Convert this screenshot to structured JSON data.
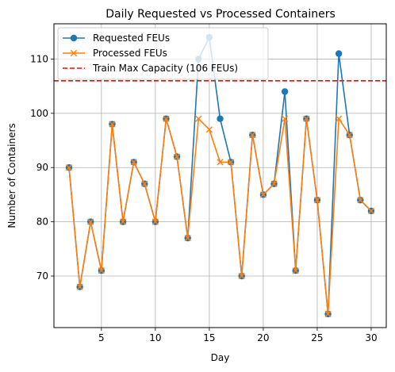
{
  "chart_data": {
    "type": "line",
    "title": "Daily Requested vs Processed Containers",
    "xlabel": "Day",
    "ylabel": "Number of Containers",
    "xlim": [
      0.6,
      31.4
    ],
    "ylim": [
      60.5,
      116.5
    ],
    "xticks": [
      5,
      10,
      15,
      20,
      25,
      30
    ],
    "yticks": [
      70,
      80,
      90,
      100,
      110
    ],
    "grid": true,
    "legend_position": "top-left",
    "x": [
      2,
      3,
      4,
      5,
      6,
      7,
      8,
      9,
      10,
      11,
      12,
      13,
      14,
      15,
      16,
      17,
      18,
      19,
      20,
      21,
      22,
      23,
      24,
      25,
      26,
      27,
      28,
      29,
      30
    ],
    "series": [
      {
        "name": "Requested FEUs",
        "color": "#1f77b4",
        "marker": "circle",
        "values": [
          90,
          68,
          80,
          71,
          98,
          80,
          91,
          87,
          80,
          99,
          92,
          77,
          110,
          114,
          99,
          91,
          70,
          96,
          85,
          87,
          104,
          71,
          99,
          84,
          63,
          111,
          96,
          84,
          82
        ]
      },
      {
        "name": "Processed FEUs",
        "color": "#ff7f0e",
        "marker": "x",
        "values": [
          90,
          68,
          80,
          71,
          98,
          80,
          91,
          87,
          80,
          99,
          92,
          77,
          99,
          97,
          91,
          91,
          70,
          96,
          85,
          87,
          99,
          71,
          99,
          84,
          63,
          99,
          96,
          84,
          82
        ]
      }
    ],
    "reference_line": {
      "name": "Train Max Capacity (106 FEUs)",
      "value": 106,
      "color": "#ff0000",
      "style": "dashed"
    }
  }
}
